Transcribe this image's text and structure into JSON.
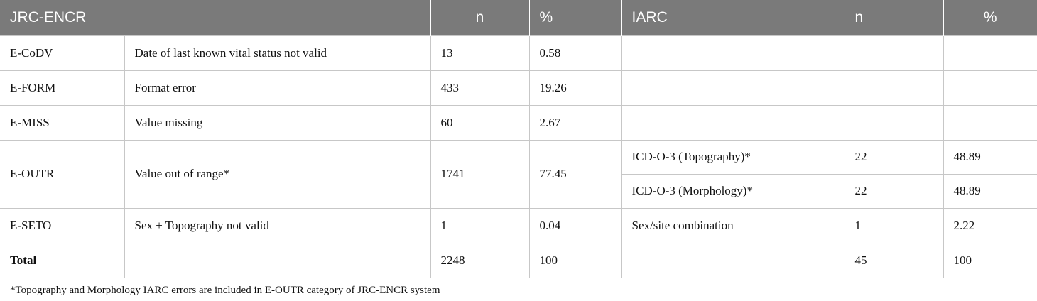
{
  "header": {
    "jrc": "JRC-ENCR",
    "n1": "n",
    "pct1": "%",
    "iarc": "IARC",
    "n2": "n",
    "pct2": "%"
  },
  "rows": [
    {
      "code": "E-CoDV",
      "desc": "Date of last known vital status not valid",
      "n": "13",
      "pct": "0.58",
      "iarc": "",
      "iarc_n": "",
      "iarc_pct": ""
    },
    {
      "code": "E-FORM",
      "desc": "Format error",
      "n": "433",
      "pct": "19.26",
      "iarc": "",
      "iarc_n": "",
      "iarc_pct": ""
    },
    {
      "code": "E-MISS",
      "desc": "Value missing",
      "n": "60",
      "pct": "2.67",
      "iarc": "",
      "iarc_n": "",
      "iarc_pct": ""
    },
    {
      "code": "E-OUTR",
      "desc": "Value out of range*",
      "n": "1741",
      "pct": "77.45",
      "iarc_sub": [
        {
          "iarc": "ICD-O-3 (Topography)*",
          "iarc_n": "22",
          "iarc_pct": "48.89"
        },
        {
          "iarc": "ICD-O-3 (Morphology)*",
          "iarc_n": "22",
          "iarc_pct": "48.89"
        }
      ]
    },
    {
      "code": "E-SETO",
      "desc": "Sex + Topography not valid",
      "n": "1",
      "pct": "0.04",
      "iarc": "Sex/site combination",
      "iarc_n": "1",
      "iarc_pct": "2.22"
    },
    {
      "code": "Total",
      "desc": "",
      "n": "2248",
      "pct": "100",
      "iarc": "",
      "iarc_n": "45",
      "iarc_pct": "100"
    }
  ],
  "footnote": "*Topography and Morphology IARC errors are included in E-OUTR category of JRC-ENCR system"
}
